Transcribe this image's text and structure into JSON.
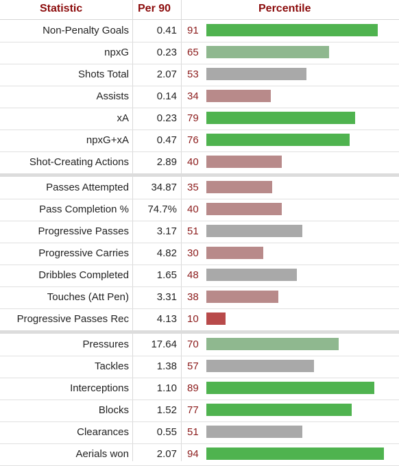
{
  "header": {
    "statistic": "Statistic",
    "per90": "Per 90",
    "percentile": "Percentile"
  },
  "chart_data": {
    "type": "bar",
    "orientation": "horizontal",
    "xlim": [
      0,
      100
    ],
    "groups": [
      [
        {
          "stat": "Non-Penalty Goals",
          "per90": "0.41",
          "percentile": 91
        },
        {
          "stat": "npxG",
          "per90": "0.23",
          "percentile": 65
        },
        {
          "stat": "Shots Total",
          "per90": "2.07",
          "percentile": 53
        },
        {
          "stat": "Assists",
          "per90": "0.14",
          "percentile": 34
        },
        {
          "stat": "xA",
          "per90": "0.23",
          "percentile": 79
        },
        {
          "stat": "npxG+xA",
          "per90": "0.47",
          "percentile": 76
        },
        {
          "stat": "Shot-Creating Actions",
          "per90": "2.89",
          "percentile": 40
        }
      ],
      [
        {
          "stat": "Passes Attempted",
          "per90": "34.87",
          "percentile": 35
        },
        {
          "stat": "Pass Completion %",
          "per90": "74.7%",
          "percentile": 40
        },
        {
          "stat": "Progressive Passes",
          "per90": "3.17",
          "percentile": 51
        },
        {
          "stat": "Progressive Carries",
          "per90": "4.82",
          "percentile": 30
        },
        {
          "stat": "Dribbles Completed",
          "per90": "1.65",
          "percentile": 48
        },
        {
          "stat": "Touches (Att Pen)",
          "per90": "3.31",
          "percentile": 38
        },
        {
          "stat": "Progressive Passes Rec",
          "per90": "4.13",
          "percentile": 10
        }
      ],
      [
        {
          "stat": "Pressures",
          "per90": "17.64",
          "percentile": 70
        },
        {
          "stat": "Tackles",
          "per90": "1.38",
          "percentile": 57
        },
        {
          "stat": "Interceptions",
          "per90": "1.10",
          "percentile": 89
        },
        {
          "stat": "Blocks",
          "per90": "1.52",
          "percentile": 77
        },
        {
          "stat": "Clearances",
          "per90": "0.55",
          "percentile": 51
        },
        {
          "stat": "Aerials won",
          "per90": "2.07",
          "percentile": 94
        }
      ]
    ]
  },
  "colors": {
    "header_text": "#8b0b0b",
    "percentile_text": "#8b1a1a",
    "bar_scale_low": "#b84a4a",
    "bar_scale_mid_low": "#b88a8a",
    "bar_scale_mid": "#a9a9a9",
    "bar_scale_mid_high": "#8fb88f",
    "bar_scale_high": "#4fb34f"
  }
}
